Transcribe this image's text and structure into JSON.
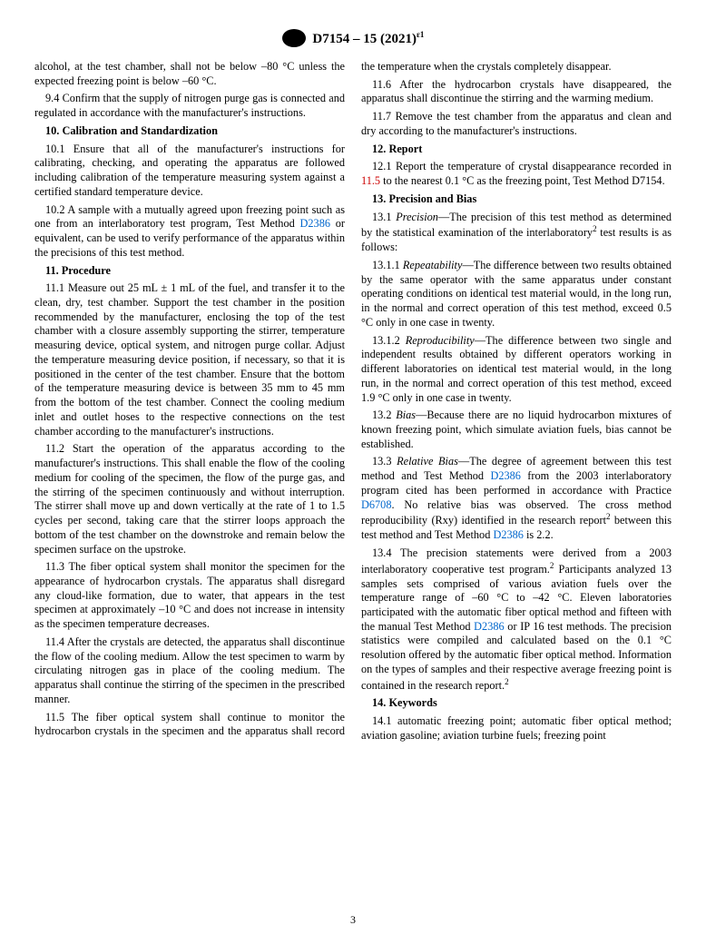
{
  "header": {
    "designation": "D7154 – 15 (2021)",
    "epsilon": "ɛ1"
  },
  "left_column": {
    "p_intro": "alcohol, at the test chamber, shall not be below –80 °C unless the expected freezing point is below –60 °C.",
    "p_9_4": "9.4 Confirm that the supply of nitrogen purge gas is connected and regulated in accordance with the manufacturer's instructions.",
    "h10": "10. Calibration and Standardization",
    "p_10_1": "10.1 Ensure that all of the manufacturer's instructions for calibrating, checking, and operating the apparatus are followed including calibration of the temperature measuring system against a certified standard temperature device.",
    "p_10_2a": "10.2 A sample with a mutually agreed upon freezing point such as one from an interlaboratory test program, Test Method ",
    "p_10_2_link": "D2386",
    "p_10_2b": " or equivalent, can be used to verify performance of the apparatus within the precisions of this test method.",
    "h11": "11. Procedure",
    "p_11_1": "11.1 Measure out 25 mL ± 1 mL of the fuel, and transfer it to the clean, dry, test chamber. Support the test chamber in the position recommended by the manufacturer, enclosing the top of the test chamber with a closure assembly supporting the stirrer, temperature measuring device, optical system, and nitrogen purge collar. Adjust the temperature measuring device position, if necessary, so that it is positioned in the center of the test chamber. Ensure that the bottom of the temperature measuring device is between 35 mm to 45 mm from the bottom of the test chamber. Connect the cooling medium inlet and outlet hoses to the respective connections on the test chamber according to the manufacturer's instructions.",
    "p_11_2": "11.2 Start the operation of the apparatus according to the manufacturer's instructions. This shall enable the flow of the cooling medium for cooling of the specimen, the flow of the purge gas, and the stirring of the specimen continuously and without interruption. The stirrer shall move up and down vertically at the rate of 1 to 1.5 cycles per second, taking care that the stirrer loops approach the bottom of the test chamber on the downstroke and remain below the specimen surface on the upstroke.",
    "p_11_3": "11.3 The fiber optical system shall monitor the specimen for the appearance of hydrocarbon crystals. The apparatus shall disregard any cloud-like formation, due to water, that appears in the test specimen at approximately –10 °C and does not increase in intensity as the specimen temperature decreases.",
    "p_11_4": "11.4 After the crystals are detected, the apparatus shall discontinue the flow of the cooling medium. Allow the test specimen to warm by circulating nitrogen gas in place of the cooling medium. The apparatus shall continue the stirring of the specimen in the prescribed manner.",
    "p_11_5": "11.5 The fiber optical system shall continue to monitor the hydrocarbon crystals in the specimen and the apparatus shall record the temperature when the crystals completely disappear."
  },
  "right_column": {
    "p_11_6": "11.6 After the hydrocarbon crystals have disappeared, the apparatus shall discontinue the stirring and the warming medium.",
    "p_11_7": "11.7 Remove the test chamber from the apparatus and clean and dry according to the manufacturer's instructions.",
    "h12": "12. Report",
    "p_12_1a": "12.1 Report the temperature of crystal disappearance recorded in ",
    "p_12_1_link": "11.5",
    "p_12_1b": " to the nearest 0.1 °C as the freezing point, Test Method D7154.",
    "h13": "13. Precision and Bias",
    "p_13_1_label": "Precision",
    "p_13_1a": "13.1 ",
    "p_13_1b": "—The precision of this test method as determined by the statistical examination of the interlaboratory",
    "p_13_1c": " test results is as follows:",
    "p_13_1_1_label": "Repeatability",
    "p_13_1_1a": "13.1.1 ",
    "p_13_1_1b": "—The difference between two results obtained by the same operator with the same apparatus under constant operating conditions on identical test material would, in the long run, in the normal and correct operation of this test method, exceed 0.5 °C only in one case in twenty.",
    "p_13_1_2_label": "Reproducibility",
    "p_13_1_2a": "13.1.2 ",
    "p_13_1_2b": "—The difference between two single and independent results obtained by different operators working in different laboratories on identical test material would, in the long run, in the normal and correct operation of this test method, exceed 1.9 °C only in one case in twenty.",
    "p_13_2_label": "Bias",
    "p_13_2a": "13.2 ",
    "p_13_2b": "—Because there are no liquid hydrocarbon mixtures of known freezing point, which simulate aviation fuels, bias cannot be established.",
    "p_13_3_label": "Relative Bias",
    "p_13_3a": "13.3 ",
    "p_13_3b": "—The degree of agreement between this test method and Test Method ",
    "p_13_3_link1": "D2386",
    "p_13_3c": " from the 2003 interlaboratory program cited has been performed in accordance with Practice ",
    "p_13_3_link2": "D6708",
    "p_13_3d": ". No relative bias was observed. The cross method reproducibility (Rxy) identified in the research report",
    "p_13_3e": " between this test method and Test Method ",
    "p_13_3_link3": "D2386",
    "p_13_3f": " is 2.2.",
    "p_13_4a": "13.4 The precision statements were derived from a 2003 interlaboratory cooperative test program.",
    "p_13_4b": " Participants analyzed 13 samples sets comprised of various aviation fuels over the temperature range of –60 °C to –42 °C. Eleven laboratories participated with the automatic fiber optical method and fifteen with the manual Test Method ",
    "p_13_4_link": "D2386",
    "p_13_4c": " or IP 16 test methods. The precision statistics were compiled and calculated based on the 0.1 °C resolution offered by the automatic fiber optical method. Information on the types of samples and their respective average freezing point is contained in the research report.",
    "h14": "14. Keywords",
    "p_14_1": "14.1 automatic freezing point; automatic fiber optical method; aviation gasoline; aviation turbine fuels; freezing point"
  },
  "page_number": "3",
  "colors": {
    "text": "#000000",
    "link_blue": "#0066cc",
    "link_red": "#cc0000",
    "background": "#ffffff"
  },
  "fonts": {
    "body_family": "Times New Roman",
    "body_size_pt": 10,
    "header_size_pt": 12
  }
}
